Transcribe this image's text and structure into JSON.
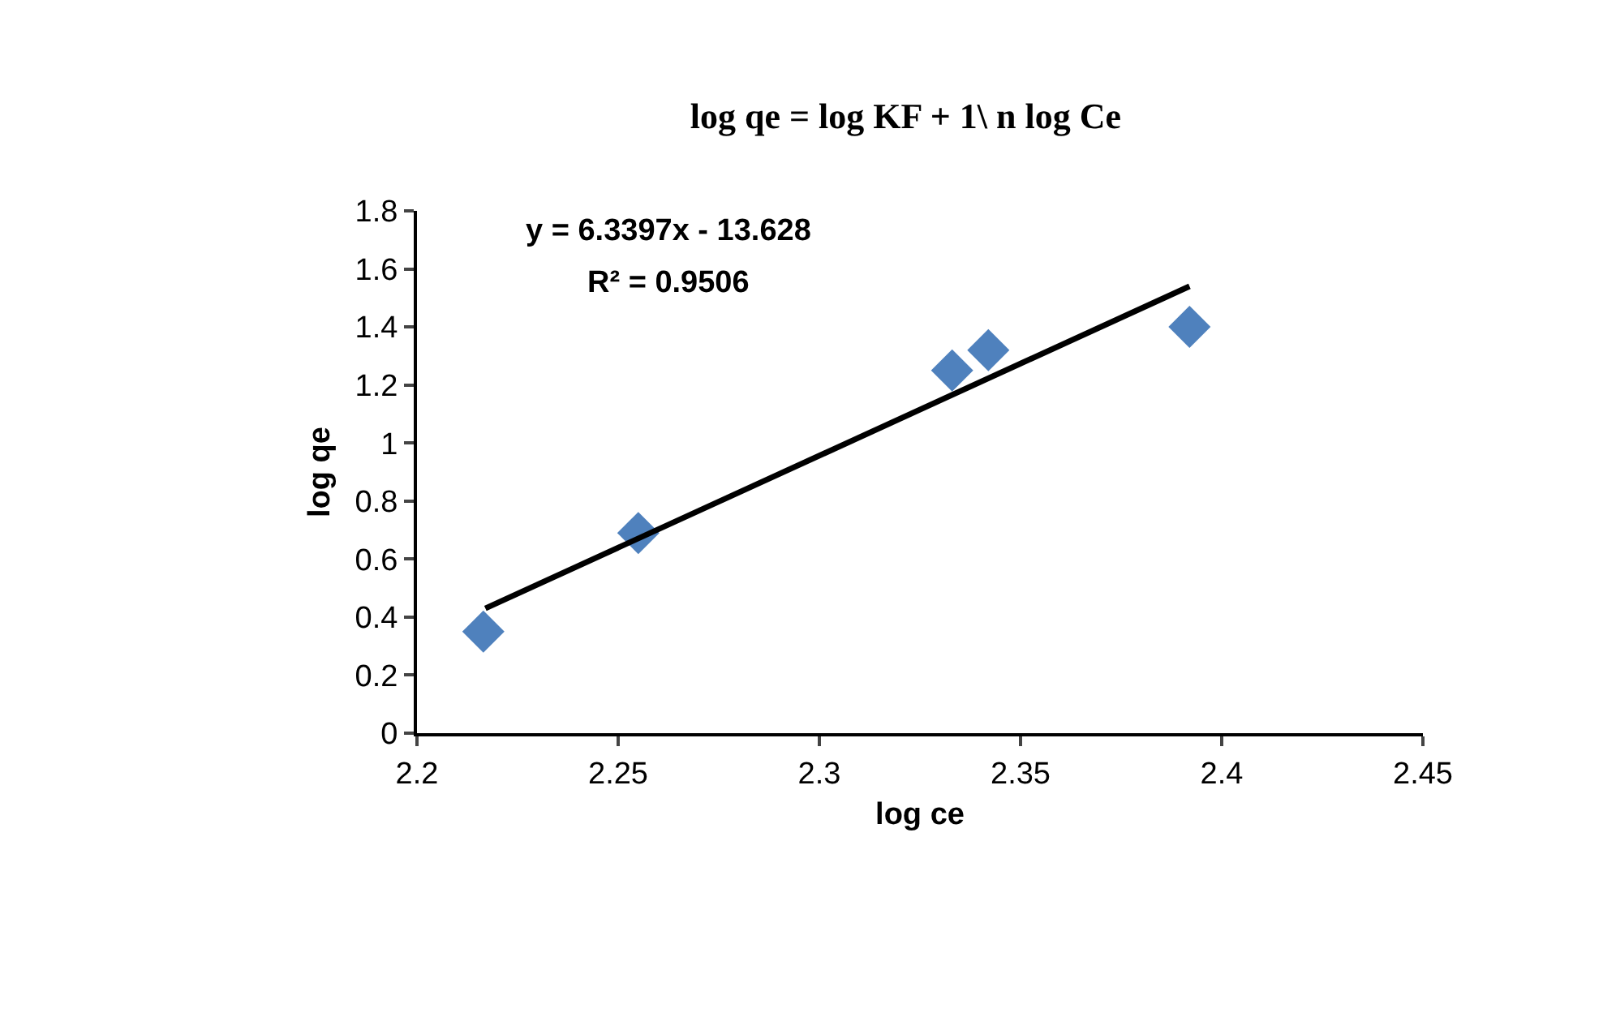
{
  "chart_data": {
    "type": "scatter",
    "title": "log qe = log KF + 1\\ n log Ce",
    "xlabel": "log ce",
    "ylabel": "log qe",
    "x": [
      2.2165,
      2.255,
      2.333,
      2.342,
      2.392
    ],
    "series": [
      {
        "color": "#4f81bd",
        "values": [
          0.35,
          0.69,
          1.25,
          1.32,
          1.4
        ],
        "marker": "diamond"
      },
      {
        "type": "line",
        "color": "#000000",
        "x": [
          2.217,
          2.392
        ],
        "values": [
          0.43,
          1.54
        ],
        "marker": "none"
      }
    ],
    "annotations": [
      "y = 6.3397x - 13.628",
      "R² = 0.9506"
    ],
    "xlim": [
      2.2,
      2.45
    ],
    "xticks": [
      2.2,
      2.25,
      2.3,
      2.35,
      2.4,
      2.45
    ],
    "ylim": [
      0,
      1.8
    ],
    "yticks": [
      0,
      0.2,
      0.4,
      0.6,
      0.8,
      1,
      1.2,
      1.4,
      1.6,
      1.8
    ]
  }
}
